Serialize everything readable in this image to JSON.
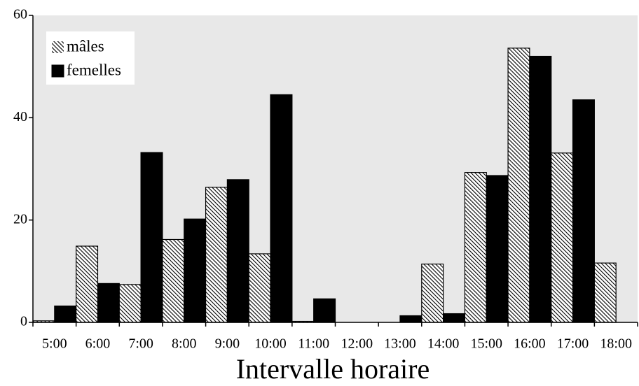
{
  "chart_data": {
    "type": "bar",
    "x_label": "Intervalle horaire",
    "categories": [
      "5:00",
      "6:00",
      "7:00",
      "8:00",
      "9:00",
      "10:00",
      "11:00",
      "12:00",
      "13:00",
      "14:00",
      "15:00",
      "16:00",
      "17:00",
      "18:00"
    ],
    "series": [
      {
        "name": "mâles",
        "color": "#000000",
        "pattern": "hatch",
        "values": [
          0.3,
          14.9,
          7.4,
          16.2,
          26.4,
          13.4,
          0.2,
          0,
          0,
          11.4,
          29.3,
          53.6,
          33.1,
          11.6
        ]
      },
      {
        "name": "femelles",
        "color": "#000000",
        "pattern": "solid",
        "values": [
          3.2,
          7.6,
          33.2,
          20.2,
          27.9,
          44.5,
          4.6,
          0,
          1.3,
          1.7,
          28.7,
          52.0,
          43.5,
          null
        ]
      }
    ],
    "ylim": [
      0,
      60
    ],
    "yticks": [
      0,
      20,
      40,
      60
    ],
    "legend": "top-left",
    "background": "#e8e8e8"
  }
}
